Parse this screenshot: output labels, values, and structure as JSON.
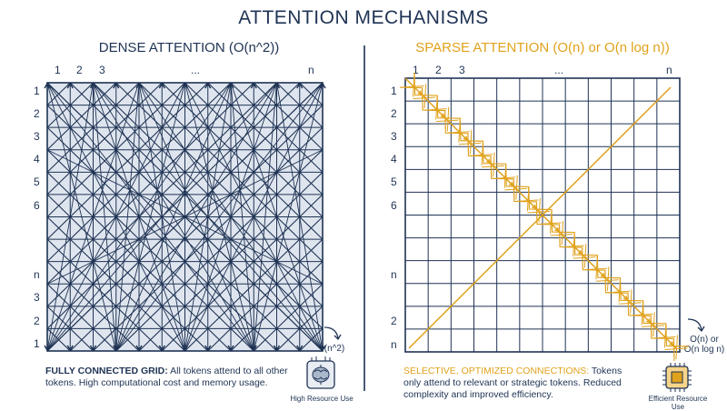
{
  "title": "ATTENTION MECHANISMS",
  "dense": {
    "title": "DENSE ATTENTION (O(n^2))",
    "top_labels": [
      "1",
      "2",
      "3",
      "...",
      "n"
    ],
    "side_labels": [
      "1",
      "2",
      "3",
      "4",
      "5",
      "6",
      "n",
      "3",
      "2",
      "1"
    ],
    "complexity": "O(n^2)",
    "caption_bold": "FULLY CONNECTED GRID:",
    "caption_text": " All tokens attend to all other tokens. High computational cost and memory usage.",
    "resource_label": "High Resource Use",
    "color": "#1f3354"
  },
  "sparse": {
    "title": "SPARSE ATTENTION (O(n) or O(n log n))",
    "top_labels": [
      "1",
      "2",
      "3",
      "...",
      "n"
    ],
    "side_labels": [
      "1",
      "2",
      "3",
      "4",
      "5",
      "6",
      "n",
      "2",
      "n"
    ],
    "complexity_line1": "O(n) or",
    "complexity_line2": "O(n log n)",
    "caption_highlight": "SELECTIVE, OPTIMIZED CONNECTIONS:",
    "caption_text": " Tokens only attend to relevant or strategic tokens. Reduced complexity and improved efficiency.",
    "resource_label": "Efficient Resource Use",
    "color": "#e0a21c"
  },
  "icons": [
    "down-right-arrow-icon",
    "brain-chip-icon",
    "processor-chip-icon"
  ]
}
